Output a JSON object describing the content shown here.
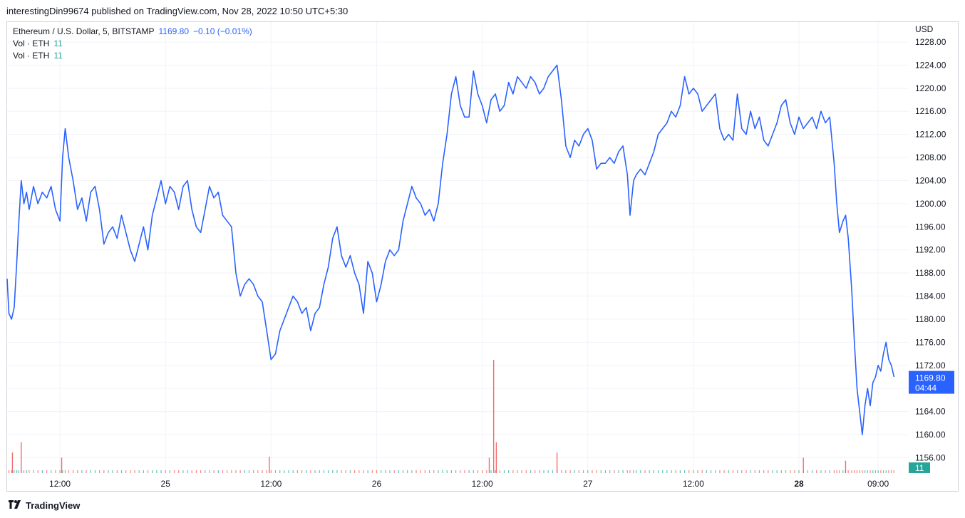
{
  "header": {
    "published": "interestingDin99674 published on TradingView.com, Nov 28, 2022 10:50 UTC+5:30"
  },
  "legend": {
    "symbol": "Ethereum / U.S. Dollar, 5, BITSTAMP",
    "price": "1169.80",
    "change": "−0.10 (−0.01%)",
    "vol_rows": [
      {
        "label": "Vol · ETH",
        "value": "11"
      },
      {
        "label": "Vol · ETH",
        "value": "11"
      }
    ]
  },
  "footer": {
    "brand": "TradingView"
  },
  "colors": {
    "line": "#2962ff",
    "vol_up": "#26a69a",
    "vol_down": "#ef5350",
    "grid": "#f0f3fa"
  },
  "chart_data": {
    "type": "line",
    "title": "Ethereum / U.S. Dollar, 5, BITSTAMP",
    "ylabel": "USD",
    "ylim": [
      1152,
      1230
    ],
    "y_ticks": [
      "1228.00",
      "1224.00",
      "1220.00",
      "1216.00",
      "1212.00",
      "1208.00",
      "1204.00",
      "1200.00",
      "1196.00",
      "1192.00",
      "1188.00",
      "1184.00",
      "1180.00",
      "1176.00",
      "1172.00",
      "1168.00",
      "1164.00",
      "1160.00",
      "1156.00"
    ],
    "x_ticks": [
      {
        "label": "12:00",
        "t": 6,
        "bold": false
      },
      {
        "label": "25",
        "t": 18,
        "bold": false
      },
      {
        "label": "12:00",
        "t": 30,
        "bold": false
      },
      {
        "label": "26",
        "t": 42,
        "bold": false
      },
      {
        "label": "12:00",
        "t": 54,
        "bold": false
      },
      {
        "label": "27",
        "t": 66,
        "bold": false
      },
      {
        "label": "12:00",
        "t": 78,
        "bold": false
      },
      {
        "label": "28",
        "t": 90,
        "bold": true
      },
      {
        "label": "09:00",
        "t": 99,
        "bold": false
      }
    ],
    "x_range": [
      0,
      101.5
    ],
    "last_price": {
      "value": "1169.80",
      "countdown": "04:44",
      "y": 1169.8
    },
    "last_volume": "11",
    "series": [
      {
        "values": [
          [
            0,
            1187
          ],
          [
            0.2,
            1181
          ],
          [
            0.5,
            1180
          ],
          [
            0.8,
            1182
          ],
          [
            1.1,
            1190
          ],
          [
            1.3,
            1196
          ],
          [
            1.6,
            1204
          ],
          [
            1.9,
            1200
          ],
          [
            2.2,
            1202
          ],
          [
            2.5,
            1199
          ],
          [
            3,
            1203
          ],
          [
            3.5,
            1200
          ],
          [
            4,
            1202
          ],
          [
            4.5,
            1201
          ],
          [
            5,
            1203
          ],
          [
            5.5,
            1199
          ],
          [
            6,
            1197
          ],
          [
            6.3,
            1208
          ],
          [
            6.6,
            1213
          ],
          [
            7,
            1208
          ],
          [
            7.5,
            1204
          ],
          [
            8,
            1199
          ],
          [
            8.5,
            1201
          ],
          [
            9,
            1197
          ],
          [
            9.5,
            1202
          ],
          [
            10,
            1203
          ],
          [
            10.5,
            1199
          ],
          [
            11,
            1193
          ],
          [
            11.5,
            1195
          ],
          [
            12,
            1196
          ],
          [
            12.5,
            1194
          ],
          [
            13,
            1198
          ],
          [
            13.5,
            1195
          ],
          [
            14,
            1192
          ],
          [
            14.5,
            1190
          ],
          [
            15,
            1193
          ],
          [
            15.5,
            1196
          ],
          [
            16,
            1192
          ],
          [
            16.5,
            1198
          ],
          [
            17,
            1201
          ],
          [
            17.5,
            1204
          ],
          [
            18,
            1200
          ],
          [
            18.5,
            1203
          ],
          [
            19,
            1202
          ],
          [
            19.5,
            1199
          ],
          [
            20,
            1203
          ],
          [
            20.5,
            1204
          ],
          [
            21,
            1199
          ],
          [
            21.5,
            1196
          ],
          [
            22,
            1195
          ],
          [
            22.5,
            1199
          ],
          [
            23,
            1203
          ],
          [
            23.5,
            1201
          ],
          [
            24,
            1202
          ],
          [
            24.5,
            1198
          ],
          [
            25,
            1197
          ],
          [
            25.5,
            1196
          ],
          [
            26,
            1188
          ],
          [
            26.5,
            1184
          ],
          [
            27,
            1186
          ],
          [
            27.5,
            1187
          ],
          [
            28,
            1186
          ],
          [
            28.5,
            1184
          ],
          [
            29,
            1183
          ],
          [
            29.5,
            1178
          ],
          [
            30,
            1173
          ],
          [
            30.5,
            1174
          ],
          [
            31,
            1178
          ],
          [
            31.5,
            1180
          ],
          [
            32,
            1182
          ],
          [
            32.5,
            1184
          ],
          [
            33,
            1183
          ],
          [
            33.5,
            1181
          ],
          [
            34,
            1182
          ],
          [
            34.5,
            1178
          ],
          [
            35,
            1181
          ],
          [
            35.5,
            1182
          ],
          [
            36,
            1186
          ],
          [
            36.5,
            1189
          ],
          [
            37,
            1194
          ],
          [
            37.5,
            1196
          ],
          [
            38,
            1191
          ],
          [
            38.5,
            1189
          ],
          [
            39,
            1191
          ],
          [
            39.5,
            1188
          ],
          [
            40,
            1186
          ],
          [
            40.5,
            1181
          ],
          [
            41,
            1190
          ],
          [
            41.5,
            1188
          ],
          [
            42,
            1183
          ],
          [
            42.5,
            1186
          ],
          [
            43,
            1190
          ],
          [
            43.5,
            1192
          ],
          [
            44,
            1191
          ],
          [
            44.5,
            1192
          ],
          [
            45,
            1197
          ],
          [
            45.5,
            1200
          ],
          [
            46,
            1203
          ],
          [
            46.5,
            1201
          ],
          [
            47,
            1200
          ],
          [
            47.5,
            1198
          ],
          [
            48,
            1199
          ],
          [
            48.5,
            1197
          ],
          [
            49,
            1200
          ],
          [
            49.5,
            1207
          ],
          [
            50,
            1212
          ],
          [
            50.5,
            1219
          ],
          [
            51,
            1222
          ],
          [
            51.5,
            1217
          ],
          [
            52,
            1215
          ],
          [
            52.5,
            1215
          ],
          [
            53,
            1223
          ],
          [
            53.5,
            1219
          ],
          [
            54,
            1217
          ],
          [
            54.5,
            1214
          ],
          [
            55,
            1218
          ],
          [
            55.5,
            1219
          ],
          [
            56,
            1216
          ],
          [
            56.5,
            1217
          ],
          [
            57,
            1221
          ],
          [
            57.5,
            1219
          ],
          [
            58,
            1222
          ],
          [
            58.5,
            1221
          ],
          [
            59,
            1220
          ],
          [
            59.5,
            1222
          ],
          [
            60,
            1221
          ],
          [
            60.5,
            1219
          ],
          [
            61,
            1220
          ],
          [
            61.5,
            1222
          ],
          [
            62,
            1223
          ],
          [
            62.5,
            1224
          ],
          [
            63,
            1218
          ],
          [
            63.5,
            1210
          ],
          [
            64,
            1208
          ],
          [
            64.5,
            1211
          ],
          [
            65,
            1210
          ],
          [
            65.5,
            1212
          ],
          [
            66,
            1213
          ],
          [
            66.5,
            1211
          ],
          [
            67,
            1206
          ],
          [
            67.5,
            1207
          ],
          [
            68,
            1207
          ],
          [
            68.5,
            1208
          ],
          [
            69,
            1207
          ],
          [
            69.5,
            1209
          ],
          [
            70,
            1210
          ],
          [
            70.5,
            1205
          ],
          [
            70.8,
            1198
          ],
          [
            71.2,
            1204
          ],
          [
            71.5,
            1205
          ],
          [
            72,
            1206
          ],
          [
            72.5,
            1205
          ],
          [
            73,
            1207
          ],
          [
            73.5,
            1209
          ],
          [
            74,
            1212
          ],
          [
            74.5,
            1213
          ],
          [
            75,
            1214
          ],
          [
            75.5,
            1216
          ],
          [
            76,
            1215
          ],
          [
            76.5,
            1217
          ],
          [
            77,
            1222
          ],
          [
            77.5,
            1219
          ],
          [
            78,
            1220
          ],
          [
            78.5,
            1219
          ],
          [
            79,
            1216
          ],
          [
            79.5,
            1217
          ],
          [
            80,
            1218
          ],
          [
            80.5,
            1219
          ],
          [
            81,
            1213
          ],
          [
            81.5,
            1211
          ],
          [
            82,
            1212
          ],
          [
            82.5,
            1211
          ],
          [
            83,
            1219
          ],
          [
            83.5,
            1213
          ],
          [
            84,
            1212
          ],
          [
            84.5,
            1216
          ],
          [
            85,
            1213
          ],
          [
            85.5,
            1215
          ],
          [
            86,
            1211
          ],
          [
            86.5,
            1210
          ],
          [
            87,
            1212
          ],
          [
            87.5,
            1214
          ],
          [
            88,
            1217
          ],
          [
            88.5,
            1218
          ],
          [
            89,
            1214
          ],
          [
            89.5,
            1212
          ],
          [
            90,
            1215
          ],
          [
            90.5,
            1213
          ],
          [
            91,
            1214
          ],
          [
            91.5,
            1215
          ],
          [
            92,
            1213
          ],
          [
            92.5,
            1216
          ],
          [
            93,
            1214
          ],
          [
            93.5,
            1215
          ],
          [
            94,
            1207
          ],
          [
            94.3,
            1200
          ],
          [
            94.6,
            1195
          ],
          [
            95,
            1197
          ],
          [
            95.3,
            1198
          ],
          [
            95.6,
            1194
          ],
          [
            96,
            1185
          ],
          [
            96.3,
            1176
          ],
          [
            96.6,
            1168
          ],
          [
            96.9,
            1164
          ],
          [
            97.2,
            1160
          ],
          [
            97.5,
            1165
          ],
          [
            97.8,
            1168
          ],
          [
            98.1,
            1165
          ],
          [
            98.4,
            1169
          ],
          [
            98.7,
            1170
          ],
          [
            99,
            1172
          ],
          [
            99.3,
            1171
          ],
          [
            99.6,
            1174
          ],
          [
            99.9,
            1176
          ],
          [
            100.2,
            1173
          ],
          [
            100.5,
            1172
          ],
          [
            100.8,
            1170
          ]
        ]
      }
    ],
    "volume_spikes": [
      [
        0.6,
        2
      ],
      [
        1.6,
        3
      ],
      [
        6.2,
        1.5
      ],
      [
        29.8,
        1.6
      ],
      [
        54.8,
        1.5
      ],
      [
        55.3,
        11
      ],
      [
        55.6,
        3
      ],
      [
        62.5,
        2
      ],
      [
        90.5,
        1.5
      ],
      [
        95.3,
        1.2
      ]
    ]
  }
}
